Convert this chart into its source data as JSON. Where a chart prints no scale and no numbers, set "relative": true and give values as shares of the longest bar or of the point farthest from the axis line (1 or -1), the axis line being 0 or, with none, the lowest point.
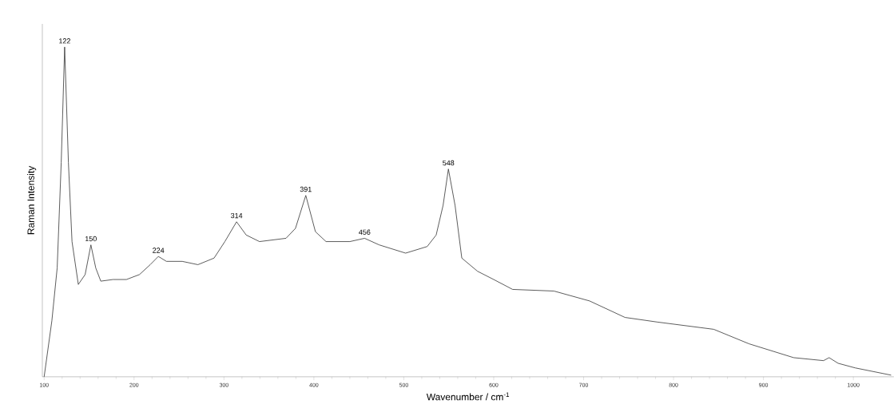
{
  "chart_data": {
    "type": "line",
    "xlabel": "Wavenumber / cm$^{-1}$",
    "ylabel": "Raman Intensity",
    "relative": true,
    "xlim": [
      98,
      1045
    ],
    "xticks": [
      100,
      200,
      300,
      400,
      500,
      600,
      700,
      800,
      900,
      1000
    ],
    "x": [
      100,
      108.6,
      114.5,
      119,
      122.8,
      127,
      131,
      138,
      145.6,
      152,
      157.4,
      163,
      176.6,
      191.5,
      206,
      218,
      227,
      236,
      253.6,
      271,
      289,
      301,
      314,
      324.7,
      339.5,
      369,
      379.5,
      391,
      401.7,
      413.5,
      440,
      456.4,
      472.6,
      502,
      526,
      536,
      543.7,
      549.6,
      557,
      564.5,
      582,
      600,
      621,
      667,
      706.6,
      746,
      782,
      844.7,
      884,
      933.6,
      966.8,
      973,
      983,
      1002,
      1042
    ],
    "series": [
      {
        "color": "#333333",
        "values": [
          0.0,
          0.17,
          0.33,
          0.65,
          1.0,
          0.65,
          0.41,
          0.28,
          0.31,
          0.4,
          0.33,
          0.29,
          0.295,
          0.295,
          0.31,
          0.34,
          0.365,
          0.35,
          0.35,
          0.34,
          0.36,
          0.41,
          0.47,
          0.43,
          0.41,
          0.42,
          0.45,
          0.55,
          0.44,
          0.41,
          0.41,
          0.42,
          0.4,
          0.375,
          0.395,
          0.43,
          0.52,
          0.63,
          0.52,
          0.36,
          0.32,
          0.295,
          0.265,
          0.26,
          0.23,
          0.18,
          0.166,
          0.144,
          0.1,
          0.058,
          0.049,
          0.058,
          0.041,
          0.027,
          0.005
        ]
      }
    ],
    "annotations": [
      {
        "text": "122",
        "x": 122.8,
        "y": 1.0
      },
      {
        "text": "150",
        "x": 152,
        "y": 0.4
      },
      {
        "text": "224",
        "x": 227,
        "y": 0.365
      },
      {
        "text": "314",
        "x": 314,
        "y": 0.47
      },
      {
        "text": "391",
        "x": 391,
        "y": 0.55
      },
      {
        "text": "456",
        "x": 456.4,
        "y": 0.42
      },
      {
        "text": "548",
        "x": 549.6,
        "y": 0.63
      }
    ]
  }
}
